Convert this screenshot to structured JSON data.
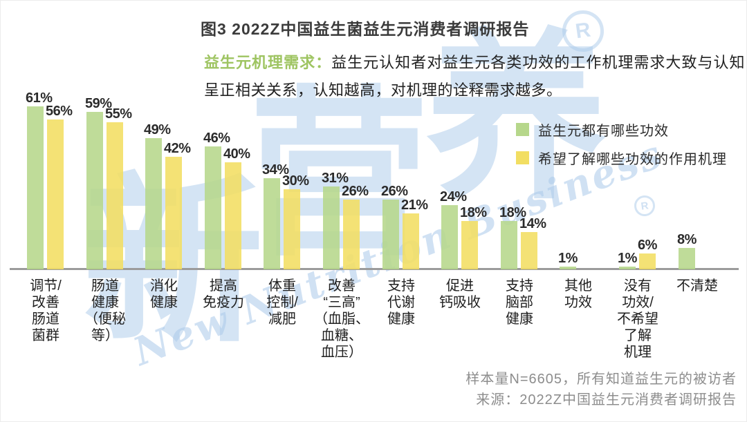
{
  "header": {
    "title": "图3 2022Z中国益生菌益生元消费者调研报告",
    "highlight": "益生元机理需求：",
    "description": "益生元认知者对益生元各类功效的工作机理需求大致与认知呈正相关关系，认知越高，对机理的诠释需求越多。",
    "highlight_color": "#9ec461",
    "title_color": "#3b3b3b"
  },
  "legend": [
    {
      "label": "益生元都有哪些功效",
      "color": "#b6d78b"
    },
    {
      "label": "希望了解哪些功效的作用机理",
      "color": "#f2de62"
    }
  ],
  "chart_data": {
    "type": "bar",
    "unit": "%",
    "ylim": [
      0,
      65
    ],
    "grid": false,
    "legend_position": "top-right",
    "value_labels": true,
    "categories": [
      "调节/改善肠道菌群",
      "肠道健康（便秘等）",
      "消化健康",
      "提高免疫力",
      "体重控制/减肥",
      "改善“三高”（血脂、血糖、血压）",
      "支持代谢健康",
      "促进钙吸收",
      "支持脑部健康",
      "其他功效",
      "没有功效/不希望了解机理",
      "不清楚"
    ],
    "category_label_lines": [
      [
        "调节/",
        "改善",
        "肠道",
        "菌群"
      ],
      [
        "肠道",
        "健康",
        "（便秘",
        "等）"
      ],
      [
        "消化",
        "健康"
      ],
      [
        "提高",
        "免疫力"
      ],
      [
        "体重",
        "控制/",
        "减肥"
      ],
      [
        "改善",
        "“三高”",
        "（血脂、",
        "血糖、",
        "血压）"
      ],
      [
        "支持",
        "代谢",
        "健康"
      ],
      [
        "促进",
        "钙吸收"
      ],
      [
        "支持",
        "脑部",
        "健康"
      ],
      [
        "其他",
        "功效"
      ],
      [
        "没有",
        "功效/",
        "不希望",
        "了解",
        "机理"
      ],
      [
        "不清楚"
      ]
    ],
    "series": [
      {
        "name": "益生元都有哪些功效",
        "key": "effects",
        "color": "#b6d78b",
        "values": [
          61,
          59,
          49,
          46,
          34,
          31,
          26,
          24,
          18,
          1,
          1,
          8
        ]
      },
      {
        "name": "希望了解哪些功效的作用机理",
        "key": "mechanism",
        "color": "#f2de62",
        "values": [
          56,
          55,
          42,
          40,
          30,
          26,
          21,
          18,
          14,
          null,
          6,
          null
        ]
      }
    ]
  },
  "footnotes": {
    "sample": "样本量N=6605，所有知道益生元的被访者",
    "source": "来源：2022Z中国益生元消费者调研报告"
  },
  "watermark": {
    "char_1": "新",
    "char_2": "营",
    "char_3": "养",
    "subtext": "New Nutrition Business",
    "registered": "R",
    "color": "#aac9e9"
  }
}
